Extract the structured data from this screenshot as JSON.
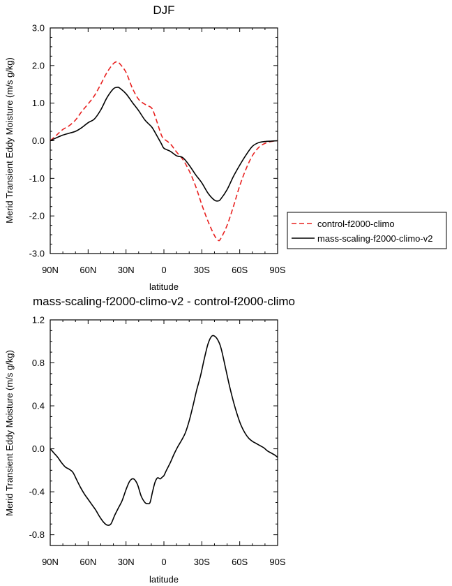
{
  "chart_data": [
    {
      "type": "line",
      "title": "DJF",
      "xlabel": "latitude",
      "ylabel": "Merid Transient Eddy Moisture (m/s g/kg)",
      "xlim": [
        90,
        -90
      ],
      "ylim": [
        -3.0,
        3.0
      ],
      "x_ticks": [
        90,
        60,
        30,
        0,
        -30,
        -60,
        -90
      ],
      "x_tick_labels": [
        "90N",
        "60N",
        "30N",
        "0",
        "30S",
        "60S",
        "90S"
      ],
      "y_ticks": [
        -3.0,
        -2.0,
        -1.0,
        0.0,
        1.0,
        2.0,
        3.0
      ],
      "y_tick_labels": [
        "-3.0",
        "-2.0",
        "-1.0",
        "0.0",
        "1.0",
        "2.0",
        "3.0"
      ],
      "legend_position": "right",
      "series": [
        {
          "name": "control-f2000-climo",
          "color": "#e8201f",
          "dash": "dashed",
          "x": [
            90,
            85,
            80,
            75,
            70,
            65,
            60,
            55,
            50,
            45,
            40,
            37,
            35,
            30,
            25,
            20,
            15,
            10,
            8,
            5,
            2,
            0,
            -5,
            -10,
            -15,
            -20,
            -25,
            -30,
            -35,
            -40,
            -43,
            -45,
            -50,
            -55,
            -60,
            -65,
            -70,
            -75,
            -80,
            -85,
            -90
          ],
          "values": [
            0.0,
            0.15,
            0.3,
            0.4,
            0.55,
            0.78,
            0.98,
            1.2,
            1.5,
            1.82,
            2.05,
            2.1,
            2.05,
            1.82,
            1.4,
            1.1,
            0.97,
            0.88,
            0.75,
            0.45,
            0.15,
            0.05,
            -0.08,
            -0.3,
            -0.5,
            -0.8,
            -1.2,
            -1.7,
            -2.15,
            -2.52,
            -2.65,
            -2.6,
            -2.25,
            -1.75,
            -1.2,
            -0.75,
            -0.4,
            -0.18,
            -0.07,
            -0.02,
            0.0
          ]
        },
        {
          "name": "mass-scaling-f2000-climo-v2",
          "color": "#000000",
          "dash": "solid",
          "x": [
            90,
            85,
            80,
            75,
            70,
            65,
            60,
            55,
            50,
            45,
            40,
            37,
            35,
            30,
            25,
            20,
            15,
            10,
            8,
            5,
            2,
            0,
            -5,
            -10,
            -15,
            -20,
            -25,
            -30,
            -35,
            -40,
            -43,
            -45,
            -50,
            -55,
            -60,
            -65,
            -70,
            -75,
            -80,
            -85,
            -90
          ],
          "values": [
            0.0,
            0.08,
            0.15,
            0.2,
            0.25,
            0.35,
            0.48,
            0.58,
            0.82,
            1.15,
            1.38,
            1.42,
            1.4,
            1.25,
            1.02,
            0.8,
            0.55,
            0.38,
            0.28,
            0.1,
            -0.08,
            -0.2,
            -0.28,
            -0.4,
            -0.45,
            -0.65,
            -0.9,
            -1.12,
            -1.4,
            -1.58,
            -1.6,
            -1.55,
            -1.3,
            -0.95,
            -0.65,
            -0.38,
            -0.15,
            -0.05,
            -0.02,
            -0.01,
            0.0
          ]
        }
      ]
    },
    {
      "type": "line",
      "title": "mass-scaling-f2000-climo-v2 - control-f2000-climo",
      "xlabel": "latitude",
      "ylabel": "Merid Transient Eddy Moisture (m/s g/kg)",
      "xlim": [
        90,
        -90
      ],
      "ylim": [
        -0.9,
        1.2
      ],
      "x_ticks": [
        90,
        60,
        30,
        0,
        -30,
        -60,
        -90
      ],
      "x_tick_labels": [
        "90N",
        "60N",
        "30N",
        "0",
        "30S",
        "60S",
        "90S"
      ],
      "y_ticks": [
        -0.8,
        -0.4,
        0.0,
        0.4,
        0.8,
        1.2
      ],
      "y_tick_labels": [
        "-0.8",
        "-0.4",
        "0.0",
        "0.4",
        "0.8",
        "1.2"
      ],
      "series": [
        {
          "name": "mass-scaling-f2000-climo-v2 - control-f2000-climo",
          "color": "#000000",
          "dash": "solid",
          "x": [
            90,
            87,
            84,
            81,
            78,
            75,
            72,
            69,
            66,
            63,
            60,
            57,
            54,
            51,
            48,
            45,
            42,
            39,
            36,
            33,
            30,
            27,
            24,
            21,
            18,
            15,
            13,
            11,
            9,
            7,
            5,
            3,
            1,
            0,
            -2,
            -5,
            -8,
            -11,
            -14,
            -17,
            -20,
            -23,
            -26,
            -29,
            -32,
            -35,
            -38,
            -41,
            -44,
            -46,
            -49,
            -52,
            -55,
            -58,
            -61,
            -64,
            -67,
            -70,
            -73,
            -76,
            -79,
            -82,
            -85,
            -88,
            -90
          ],
          "values": [
            0.0,
            -0.04,
            -0.08,
            -0.13,
            -0.17,
            -0.19,
            -0.22,
            -0.29,
            -0.36,
            -0.42,
            -0.47,
            -0.52,
            -0.57,
            -0.63,
            -0.68,
            -0.71,
            -0.7,
            -0.62,
            -0.55,
            -0.48,
            -0.38,
            -0.3,
            -0.28,
            -0.33,
            -0.44,
            -0.5,
            -0.51,
            -0.5,
            -0.4,
            -0.31,
            -0.27,
            -0.28,
            -0.26,
            -0.25,
            -0.2,
            -0.13,
            -0.05,
            0.02,
            0.08,
            0.15,
            0.26,
            0.4,
            0.55,
            0.68,
            0.84,
            0.98,
            1.05,
            1.04,
            0.98,
            0.9,
            0.74,
            0.58,
            0.44,
            0.32,
            0.22,
            0.15,
            0.1,
            0.07,
            0.05,
            0.03,
            0.01,
            -0.02,
            -0.04,
            -0.06,
            -0.08
          ]
        }
      ]
    }
  ]
}
